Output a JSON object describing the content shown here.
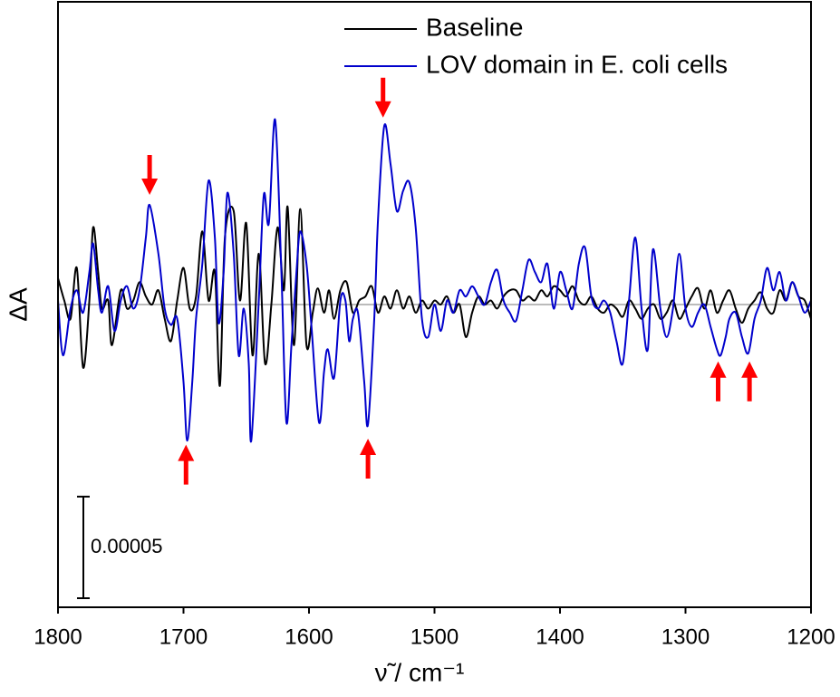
{
  "chart_data": {
    "type": "line",
    "xlabel": "ν̃ / cm⁻¹",
    "ylabel": "ΔA",
    "xlim": [
      1800,
      1200
    ],
    "xticks": [
      1800,
      1700,
      1600,
      1500,
      1400,
      1300,
      1200
    ],
    "ylim": [
      -0.000149,
      0.000149
    ],
    "zero_line": true,
    "zero_line_color": "#bbbbbb",
    "legend": "top-right",
    "scale_bar": 5e-05,
    "arrow_color": "#ff0000",
    "arrows": [
      {
        "x": 1727,
        "y": 5.4e-05,
        "direction": "down"
      },
      {
        "x": 1541,
        "y": 9.2e-05,
        "direction": "down"
      },
      {
        "x": 1698,
        "y": -6.9e-05,
        "direction": "up"
      },
      {
        "x": 1553,
        "y": -6.6e-05,
        "direction": "up"
      },
      {
        "x": 1274,
        "y": -2.8e-05,
        "direction": "up"
      },
      {
        "x": 1249,
        "y": -2.8e-05,
        "direction": "up"
      }
    ],
    "series": [
      {
        "name": "Baseline",
        "color": "#000000",
        "x": [
          1800,
          1795,
          1790,
          1785,
          1780,
          1775,
          1772,
          1768,
          1765,
          1760,
          1757,
          1750,
          1745,
          1740,
          1735,
          1730,
          1725,
          1720,
          1715,
          1710,
          1705,
          1700,
          1695,
          1690,
          1685,
          1680,
          1675,
          1671,
          1667,
          1660,
          1655,
          1650,
          1645,
          1640,
          1635,
          1630,
          1625,
          1620,
          1617,
          1612,
          1607,
          1602,
          1597,
          1593,
          1588,
          1584,
          1580,
          1575,
          1570,
          1565,
          1560,
          1555,
          1550,
          1545,
          1540,
          1535,
          1530,
          1525,
          1520,
          1515,
          1510,
          1505,
          1500,
          1495,
          1490,
          1485,
          1480,
          1475,
          1470,
          1465,
          1460,
          1455,
          1450,
          1445,
          1440,
          1435,
          1430,
          1425,
          1420,
          1415,
          1410,
          1405,
          1400,
          1395,
          1390,
          1385,
          1380,
          1375,
          1370,
          1365,
          1360,
          1355,
          1350,
          1345,
          1340,
          1335,
          1330,
          1325,
          1320,
          1315,
          1310,
          1305,
          1300,
          1295,
          1290,
          1285,
          1280,
          1275,
          1270,
          1265,
          1260,
          1255,
          1250,
          1245,
          1240,
          1235,
          1230,
          1225,
          1220,
          1215,
          1210,
          1205,
          1200
        ],
        "values": [
          1.3e-05,
          2e-06,
          -7e-06,
          1.8e-05,
          -3.1e-05,
          2e-06,
          3.8e-05,
          1.6e-05,
          -2e-06,
          2e-06,
          -2e-05,
          7e-06,
          -2e-06,
          2e-06,
          1.1e-05,
          4e-06,
          0,
          7e-06,
          -7e-06,
          -1.8e-05,
          2e-06,
          1.8e-05,
          -2e-06,
          4e-06,
          3.6e-05,
          2e-06,
          1.6e-05,
          -4e-05,
          3.3e-05,
          4.6e-05,
          2e-06,
          4e-05,
          -2.5e-05,
          2.5e-05,
          -2.9e-05,
          0,
          3.8e-05,
          7e-06,
          4.8e-05,
          -2e-05,
          4.7e-05,
          -2e-05,
          -4e-06,
          8e-06,
          -4e-06,
          7e-06,
          -7e-06,
          7e-06,
          1.1e-05,
          -4e-06,
          2e-06,
          4e-06,
          9e-06,
          -4e-06,
          4e-06,
          -2e-06,
          7e-06,
          -2e-06,
          4e-06,
          -4e-06,
          2e-06,
          -2e-06,
          2e-06,
          0,
          4e-06,
          -4e-06,
          0,
          -1.6e-05,
          -4e-06,
          4e-06,
          0,
          2e-06,
          -2e-06,
          4e-06,
          7e-06,
          7e-06,
          2e-06,
          4e-06,
          2e-06,
          7e-06,
          4e-06,
          9e-06,
          7e-06,
          4e-06,
          9e-06,
          2e-06,
          0,
          4e-06,
          -2e-06,
          -4e-06,
          0,
          -2e-06,
          -6e-06,
          2e-06,
          -2e-06,
          -7e-06,
          -2e-06,
          0,
          -7e-06,
          -4e-06,
          2e-06,
          -7e-06,
          -2e-06,
          4e-06,
          8e-06,
          -2e-06,
          7e-06,
          -4e-06,
          2e-06,
          7e-06,
          -2e-06,
          -9e-06,
          -2e-06,
          2e-06,
          6e-06,
          -2e-06,
          -4e-06,
          7e-06,
          2e-06,
          1.1e-05,
          4e-06,
          2e-06,
          -7e-06
        ]
      },
      {
        "name": "LOV domain in E. coli cells",
        "color": "#0000cc",
        "x": [
          1800,
          1796,
          1790,
          1785,
          1780,
          1775,
          1772,
          1768,
          1765,
          1760,
          1755,
          1750,
          1745,
          1740,
          1735,
          1730,
          1727,
          1720,
          1715,
          1710,
          1705,
          1700,
          1697,
          1693,
          1690,
          1685,
          1680,
          1675,
          1672,
          1668,
          1665,
          1660,
          1656,
          1652,
          1648,
          1646,
          1640,
          1636,
          1632,
          1627,
          1622,
          1618,
          1614,
          1610,
          1607,
          1602,
          1598,
          1592,
          1588,
          1585,
          1580,
          1575,
          1571,
          1568,
          1565,
          1561,
          1556,
          1553,
          1548,
          1545,
          1540,
          1535,
          1530,
          1525,
          1520,
          1515,
          1510,
          1505,
          1500,
          1495,
          1490,
          1485,
          1480,
          1475,
          1470,
          1465,
          1460,
          1455,
          1450,
          1445,
          1440,
          1435,
          1430,
          1425,
          1420,
          1415,
          1410,
          1405,
          1400,
          1395,
          1390,
          1385,
          1380,
          1375,
          1370,
          1365,
          1360,
          1355,
          1350,
          1345,
          1340,
          1335,
          1330,
          1326,
          1320,
          1315,
          1310,
          1305,
          1300,
          1295,
          1290,
          1285,
          1280,
          1275,
          1272,
          1268,
          1265,
          1260,
          1255,
          1250,
          1245,
          1240,
          1235,
          1230,
          1225,
          1220,
          1215,
          1210,
          1205,
          1200
        ],
        "values": [
          2e-06,
          -2.5e-05,
          -2e-06,
          7e-06,
          -4e-06,
          1.6e-05,
          3e-05,
          7e-06,
          -4e-06,
          9e-06,
          -1.3e-05,
          2e-06,
          9e-06,
          -2e-06,
          7e-06,
          3.3e-05,
          4.9e-05,
          2.5e-05,
          -2e-06,
          -1e-05,
          -7e-06,
          -3.8e-05,
          -6.7e-05,
          -3.8e-05,
          -7e-06,
          2e-05,
          6.1e-05,
          3.3e-05,
          -9e-06,
          1.6e-05,
          5.5e-05,
          2.5e-05,
          -2.5e-05,
          -2e-06,
          -2.9e-05,
          -6.7e-05,
          2e-06,
          5.4e-05,
          4e-05,
          9.1e-05,
          1.6e-05,
          -5.8e-05,
          -2e-05,
          1.6e-05,
          3.6e-05,
          2e-05,
          -1.1e-05,
          -5.8e-05,
          -3.3e-05,
          -2.2e-05,
          -3.6e-05,
          2e-06,
          2e-06,
          -1.8e-05,
          -7e-06,
          -4e-06,
          -3.8e-05,
          -5.9e-05,
          -7e-06,
          4.2e-05,
          8.8e-05,
          6.9e-05,
          4.6e-05,
          5.6e-05,
          6e-05,
          3.8e-05,
          -7e-06,
          -1.6e-05,
          0,
          -1.3e-05,
          2e-06,
          -4e-06,
          7e-06,
          4e-06,
          9e-06,
          4e-06,
          0,
          1.1e-05,
          1.7e-05,
          2e-06,
          -4e-06,
          -8e-06,
          7e-06,
          2.2e-05,
          1.6e-05,
          1.1e-05,
          2e-05,
          -2e-06,
          1.6e-05,
          7e-06,
          -2e-06,
          2e-05,
          2.8e-05,
          4e-06,
          -2e-06,
          2e-06,
          -4e-06,
          -1.8e-05,
          -2.9e-05,
          2e-06,
          3.3e-05,
          -2e-06,
          -2.2e-05,
          2.7e-05,
          -2e-06,
          -1.6e-05,
          -2e-06,
          2.5e-05,
          -2e-06,
          -1.1e-05,
          -4e-06,
          0,
          -1.1e-05,
          -2.2e-05,
          -2.5e-05,
          -1.6e-05,
          -7e-06,
          -4e-06,
          -1.6e-05,
          -2.4e-05,
          -7e-06,
          2e-06,
          1.8e-05,
          7e-06,
          1.6e-05,
          2e-06,
          1.1e-05,
          4e-06,
          -4e-06,
          2e-06
        ]
      }
    ]
  }
}
